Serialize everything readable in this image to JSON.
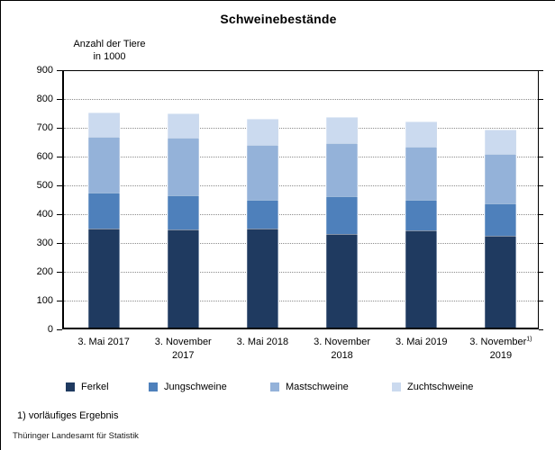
{
  "title": "Schweinebestände",
  "y_axis_title": {
    "line1": "Anzahl der Tiere",
    "line2": "in 1000"
  },
  "footnote": "1) vorläufiges Ergebnis",
  "source": "Thüringer Landesamt für Statistik",
  "colors": {
    "ferkel": "#1f3a60",
    "jungschweine": "#4e80bb",
    "mastschweine": "#94b2d9",
    "zuchtschweine": "#cbdaef",
    "grid": "#8c8c8c",
    "axis": "#000000",
    "background": "#ffffff"
  },
  "chart_data": {
    "type": "bar",
    "stacked": true,
    "title": "Schweinebestände",
    "ylabel": "Anzahl der Tiere in 1000",
    "xlabel": "",
    "ylim": [
      0,
      900
    ],
    "ytick_step": 100,
    "grid": "horizontal-dotted",
    "legend_position": "bottom",
    "categories": [
      {
        "line1": "3. Mai 2017",
        "sup": "",
        "line2": ""
      },
      {
        "line1": "3. November",
        "sup": "",
        "line2": "2017"
      },
      {
        "line1": "3. Mai 2018",
        "sup": "",
        "line2": ""
      },
      {
        "line1": "3. November",
        "sup": "",
        "line2": "2018"
      },
      {
        "line1": "3. Mai 2019",
        "sup": "",
        "line2": ""
      },
      {
        "line1": "3. November",
        "sup": "1)",
        "line2": "2019"
      }
    ],
    "series": [
      {
        "name": "Ferkel",
        "color": "#1f3a60",
        "values": [
          350,
          348,
          350,
          332,
          345,
          325
        ]
      },
      {
        "name": "Jungschweine",
        "color": "#4e80bb",
        "values": [
          124,
          118,
          100,
          130,
          106,
          113
        ]
      },
      {
        "name": "Mastschweine",
        "color": "#94b2d9",
        "values": [
          194,
          200,
          190,
          186,
          184,
          172
        ]
      },
      {
        "name": "Zuchtschweine",
        "color": "#cbdaef",
        "values": [
          84,
          85,
          90,
          90,
          87,
          83
        ]
      }
    ],
    "totals": [
      752,
      751,
      730,
      738,
      722,
      693
    ]
  },
  "legend_left_offsets": [
    72,
    164,
    299,
    434
  ]
}
